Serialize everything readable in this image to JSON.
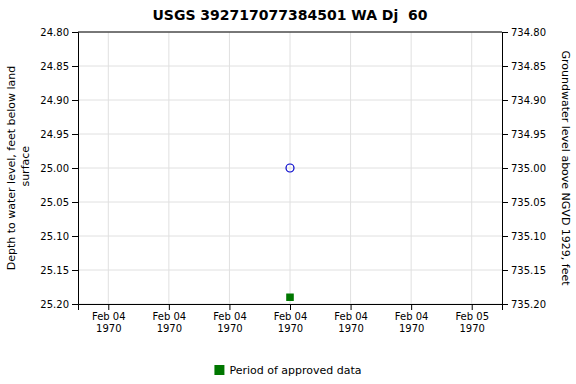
{
  "chart_data": {
    "type": "scatter",
    "title": "USGS 392717077384501 WA Dj  60",
    "ylabel": "Depth to water level, feet below land\n surface",
    "y2label": "Groundwater level above NGVD 1929, feet",
    "categories": [
      "Feb 04\n1970",
      "Feb 04\n1970",
      "Feb 04\n1970",
      "Feb 04\n1970",
      "Feb 04\n1970",
      "Feb 04\n1970",
      "Feb 05\n1970"
    ],
    "series": [
      {
        "color": "#0000cc",
        "marker": "circle-open",
        "values": [
          null,
          null,
          null,
          25.0,
          null,
          null,
          null
        ]
      },
      {
        "name": "Period of approved data",
        "color": "#007700",
        "marker": "square",
        "values": [
          null,
          null,
          null,
          25.19,
          null,
          null,
          null
        ]
      }
    ],
    "ylim": [
      25.2,
      24.8
    ],
    "yticks": [
      {
        "value": 24.8,
        "label": "24.80"
      },
      24.85,
      {
        "value": 24.9,
        "label": "24.90"
      },
      24.95,
      {
        "value": 25.0,
        "label": "25.00"
      },
      25.05,
      {
        "value": 25.1,
        "label": "25.10"
      },
      25.15,
      {
        "value": 25.2,
        "label": "25.20"
      }
    ],
    "y2lim": [
      735.2,
      734.8
    ],
    "y2ticks": [
      {
        "value": 734.8,
        "label": "734.80"
      },
      734.85,
      {
        "value": 734.9,
        "label": "734.90"
      },
      734.95,
      {
        "value": 735.0,
        "label": "735.00"
      },
      735.05,
      {
        "value": 735.1,
        "label": "735.10"
      },
      735.15,
      {
        "value": 735.2,
        "label": "735.20"
      }
    ],
    "grid": true,
    "legend": "bottom"
  }
}
